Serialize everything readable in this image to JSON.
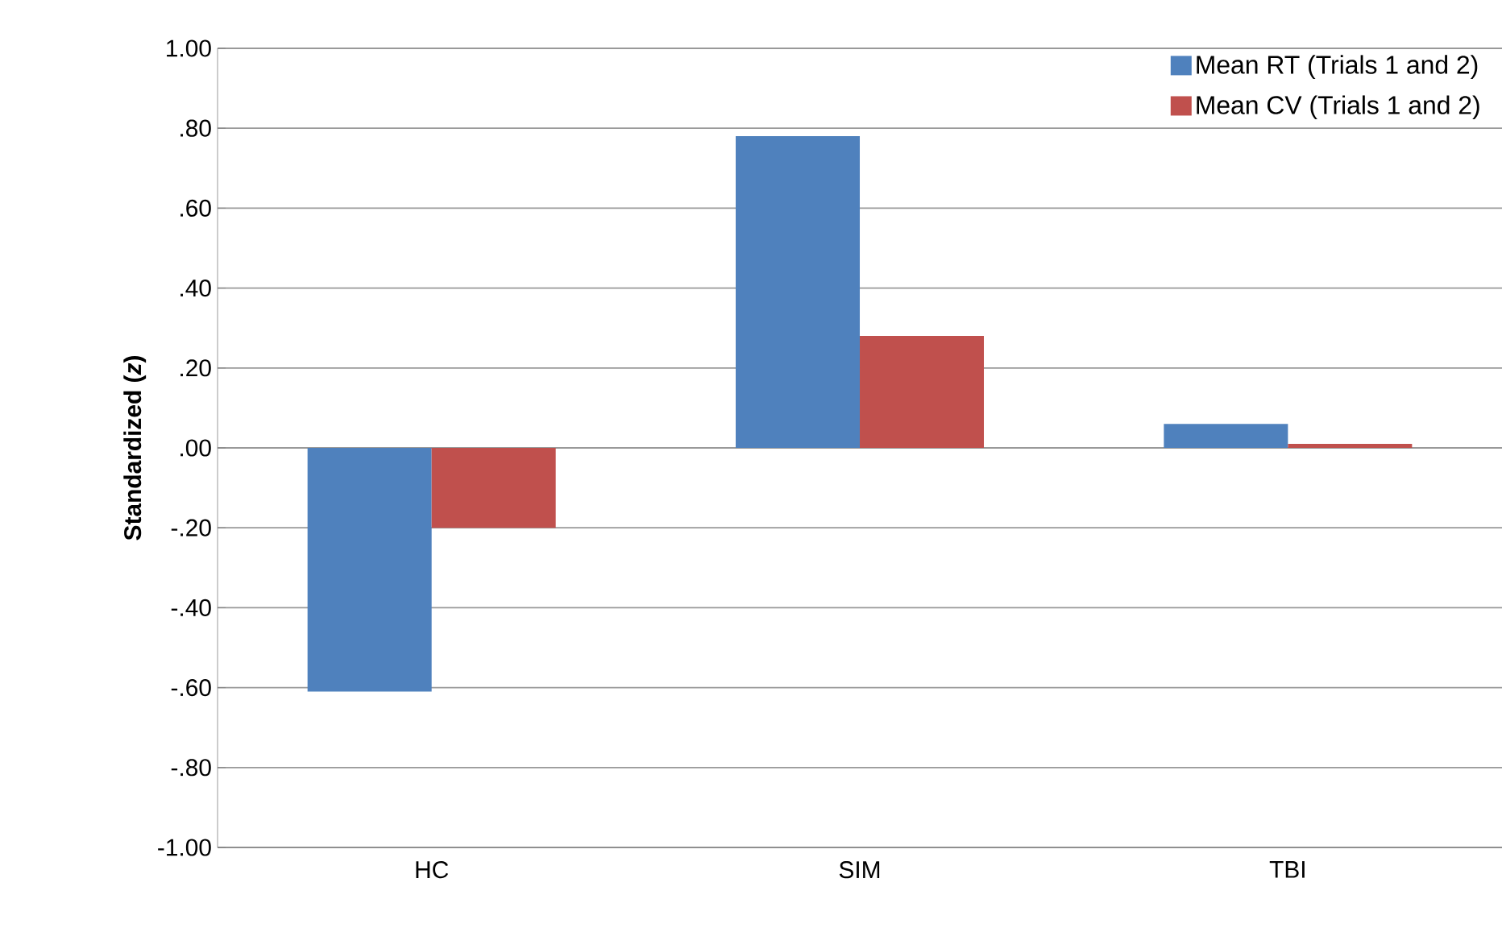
{
  "chart_data": {
    "type": "bar",
    "ylabel": "Standardized (*z*)",
    "categories": [
      "HC",
      "SIM",
      "TBI"
    ],
    "series": [
      {
        "name": "Mean RT (Trials 1 and 2)",
        "color": "#4f81bd",
        "values": [
          -0.61,
          0.78,
          0.06
        ]
      },
      {
        "name": "Mean CV (Trials 1 and 2)",
        "color": "#c0504d",
        "values": [
          -0.2,
          0.28,
          0.01
        ]
      }
    ],
    "ylim": [
      -1,
      1
    ],
    "yticks": [
      {
        "value": -1,
        "label": "-1.00"
      },
      {
        "value": -0.8,
        "label": "-.80"
      },
      {
        "value": -0.6,
        "label": "-.60"
      },
      {
        "value": -0.4,
        "label": "-.40"
      },
      {
        "value": -0.2,
        "label": "-.20"
      },
      {
        "value": 0,
        "label": ".00"
      },
      {
        "value": 0.2,
        "label": ".20"
      },
      {
        "value": 0.4,
        "label": ".40"
      },
      {
        "value": 0.6,
        "label": ".60"
      },
      {
        "value": 0.8,
        "label": ".80"
      },
      {
        "value": 1,
        "label": "1.00"
      }
    ],
    "grid": "y",
    "legend": "top right"
  }
}
